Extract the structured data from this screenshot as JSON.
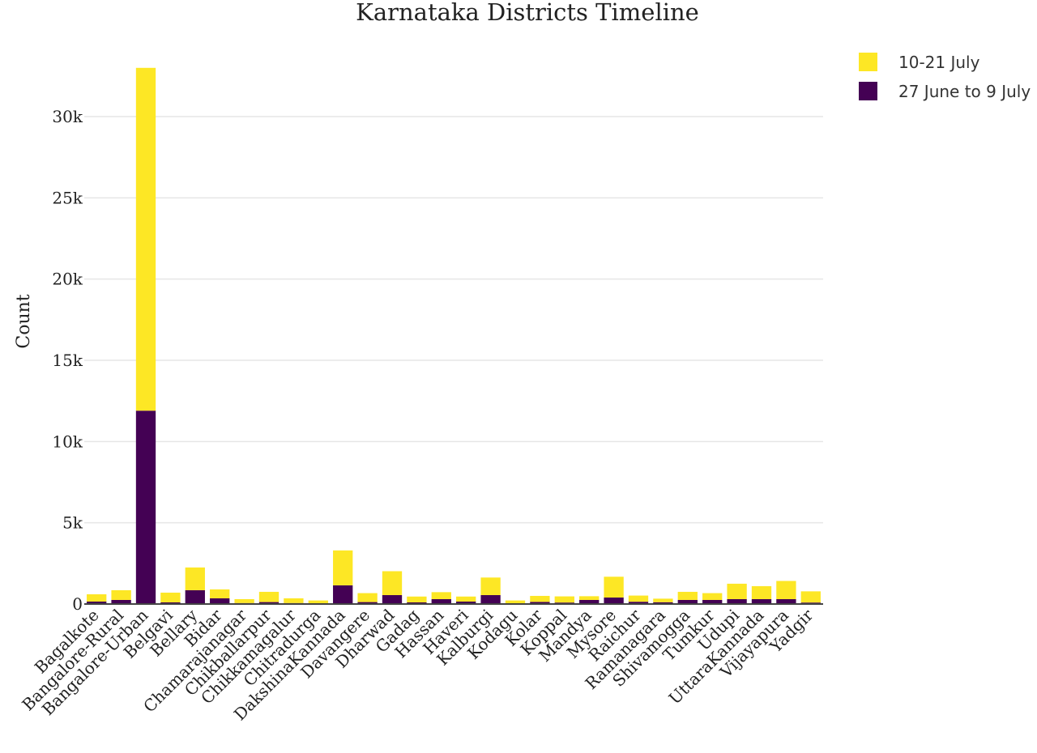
{
  "chart_data": {
    "type": "bar",
    "stacked": true,
    "title": "Karnataka Districts Timeline",
    "xlabel": "",
    "ylabel": "Count",
    "ylim": [
      0,
      33000
    ],
    "yticks": [
      0,
      5000,
      10000,
      15000,
      20000,
      25000,
      30000
    ],
    "ytick_labels": [
      "0",
      "5k",
      "10k",
      "15k",
      "20k",
      "25k",
      "30k"
    ],
    "grid": true,
    "legend_position": "top-right",
    "categories": [
      "Bagalkote",
      "Bangalore-Rural",
      "Bangalore-Urban",
      "Belgavi",
      "Bellary",
      "Bidar",
      "Chamarajanagar",
      "Chikballarpur",
      "Chikkamagalur",
      "Chitradurga",
      "DakshinaKannada",
      "Davangere",
      "Dharwad",
      "Gadag",
      "Hassan",
      "Haveri",
      "Kalburgi",
      "Kodagu",
      "Kolar",
      "Koppal",
      "Mandya",
      "Mysore",
      "Raichur",
      "Ramanagara",
      "Shivamogga",
      "Tumkur",
      "Udupi",
      "UttaraKannada",
      "Vijayapura",
      "Yadgir"
    ],
    "series": [
      {
        "name": "27 June to 9 July",
        "color": "#440154",
        "values": [
          150,
          250,
          11900,
          100,
          850,
          350,
          60,
          120,
          60,
          50,
          1150,
          120,
          550,
          100,
          300,
          150,
          550,
          40,
          130,
          90,
          250,
          400,
          140,
          110,
          250,
          250,
          300,
          300,
          300,
          90
        ]
      },
      {
        "name": "10-21 July",
        "color": "#fde725",
        "values": [
          450,
          600,
          21100,
          600,
          1400,
          550,
          240,
          630,
          290,
          170,
          2150,
          550,
          1470,
          360,
          430,
          310,
          1080,
          180,
          370,
          380,
          230,
          1280,
          380,
          220,
          500,
          420,
          950,
          800,
          1120,
          690
        ]
      }
    ],
    "legend_order": [
      "10-21 July",
      "27 June to 9 July"
    ]
  }
}
